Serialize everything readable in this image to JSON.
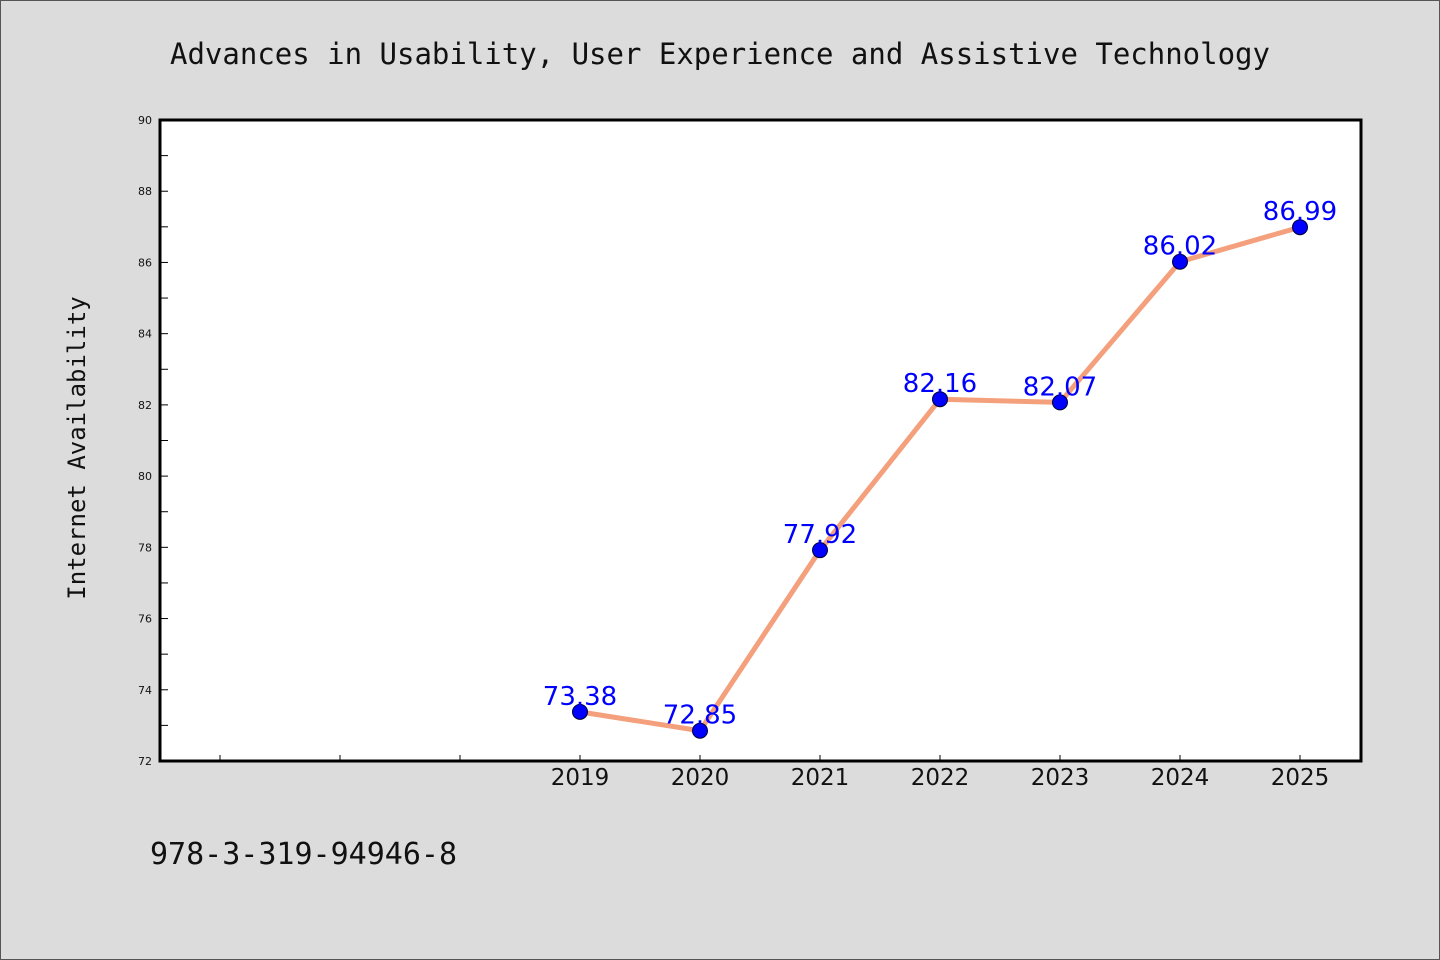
{
  "chart_data": {
    "type": "line",
    "title": "Advances in Usability, User Experience and Assistive Technology",
    "xlabel": "",
    "ylabel": "Internet Availability",
    "categories": [
      "2019",
      "2020",
      "2021",
      "2022",
      "2023",
      "2024",
      "2025"
    ],
    "series": [
      {
        "values": [
          73.38,
          72.85,
          77.92,
          82.16,
          82.07,
          86.02,
          86.99
        ],
        "data_labels": [
          "73.38",
          "72.85",
          "77.92",
          "82.16",
          "82.07",
          "86.02",
          "86.99"
        ],
        "line_color": "#f4a07c",
        "marker_color": "#0000ff"
      }
    ],
    "ylim": [
      72,
      90
    ],
    "yticks": [
      "72",
      "74",
      "76",
      "78",
      "80",
      "82",
      "84",
      "86",
      "88",
      "90"
    ],
    "grid": false,
    "legend": "none"
  },
  "footer_text": "978-3-319-94946-8",
  "colors": {
    "background": "#dcdcdc",
    "plot_background": "#ffffff",
    "data_label": "#0000ff"
  }
}
